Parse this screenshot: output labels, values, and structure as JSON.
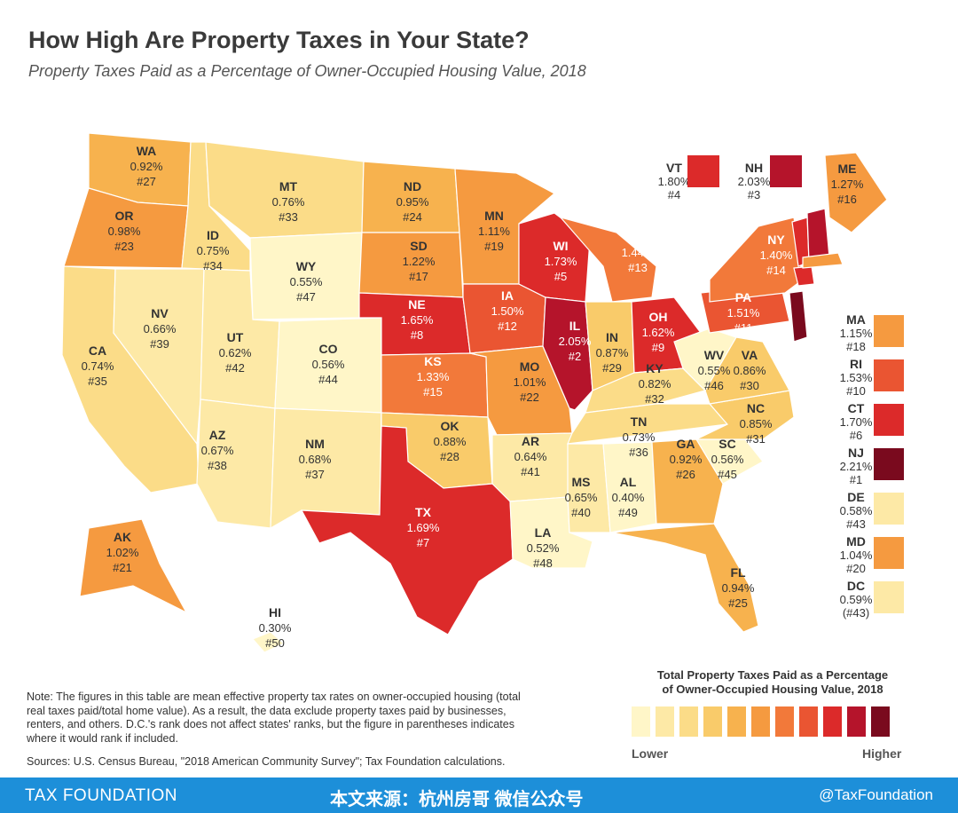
{
  "title": "How High Are Property Taxes in Your State?",
  "subtitle": "Property Taxes Paid as a Percentage of Owner-Occupied Housing Value, 2018",
  "colors": {
    "scale": [
      "#fff6c8",
      "#fde9a6",
      "#fbdc88",
      "#f9cb6a",
      "#f7b24e",
      "#f59a40",
      "#f2793a",
      "#ea5532",
      "#dc2a2a",
      "#b5142b",
      "#7a0a1e"
    ],
    "footer": "#1d8fd9"
  },
  "states": {
    "WA": {
      "code": "WA",
      "rate": "0.92%",
      "rank": "#27",
      "color": "#f7b24e"
    },
    "OR": {
      "code": "OR",
      "rate": "0.98%",
      "rank": "#23",
      "color": "#f59a40"
    },
    "CA": {
      "code": "CA",
      "rate": "0.74%",
      "rank": "#35",
      "color": "#fbdc88"
    },
    "NV": {
      "code": "NV",
      "rate": "0.66%",
      "rank": "#39",
      "color": "#fde9a6"
    },
    "ID": {
      "code": "ID",
      "rate": "0.75%",
      "rank": "#34",
      "color": "#fbdc88"
    },
    "MT": {
      "code": "MT",
      "rate": "0.76%",
      "rank": "#33",
      "color": "#fbdc88"
    },
    "WY": {
      "code": "WY",
      "rate": "0.55%",
      "rank": "#47",
      "color": "#fff6c8"
    },
    "UT": {
      "code": "UT",
      "rate": "0.62%",
      "rank": "#42",
      "color": "#fde9a6"
    },
    "AZ": {
      "code": "AZ",
      "rate": "0.67%",
      "rank": "#38",
      "color": "#fde9a6"
    },
    "CO": {
      "code": "CO",
      "rate": "0.56%",
      "rank": "#44",
      "color": "#fff6c8"
    },
    "NM": {
      "code": "NM",
      "rate": "0.68%",
      "rank": "#37",
      "color": "#fde9a6"
    },
    "ND": {
      "code": "ND",
      "rate": "0.95%",
      "rank": "#24",
      "color": "#f7b24e"
    },
    "SD": {
      "code": "SD",
      "rate": "1.22%",
      "rank": "#17",
      "color": "#f59a40"
    },
    "NE": {
      "code": "NE",
      "rate": "1.65%",
      "rank": "#8",
      "color": "#dc2a2a"
    },
    "KS": {
      "code": "KS",
      "rate": "1.33%",
      "rank": "#15",
      "color": "#f2793a"
    },
    "OK": {
      "code": "OK",
      "rate": "0.88%",
      "rank": "#28",
      "color": "#f9cb6a"
    },
    "TX": {
      "code": "TX",
      "rate": "1.69%",
      "rank": "#7",
      "color": "#dc2a2a"
    },
    "MN": {
      "code": "MN",
      "rate": "1.11%",
      "rank": "#19",
      "color": "#f59a40"
    },
    "IA": {
      "code": "IA",
      "rate": "1.50%",
      "rank": "#12",
      "color": "#ea5532"
    },
    "MO": {
      "code": "MO",
      "rate": "1.01%",
      "rank": "#22",
      "color": "#f59a40"
    },
    "AR": {
      "code": "AR",
      "rate": "0.64%",
      "rank": "#41",
      "color": "#fde9a6"
    },
    "LA": {
      "code": "LA",
      "rate": "0.52%",
      "rank": "#48",
      "color": "#fff6c8"
    },
    "WI": {
      "code": "WI",
      "rate": "1.73%",
      "rank": "#5",
      "color": "#dc2a2a"
    },
    "IL": {
      "code": "IL",
      "rate": "2.05%",
      "rank": "#2",
      "color": "#b5142b"
    },
    "MI": {
      "code": "MI",
      "rate": "1.44%",
      "rank": "#13",
      "color": "#f2793a"
    },
    "IN": {
      "code": "IN",
      "rate": "0.87%",
      "rank": "#29",
      "color": "#f9cb6a"
    },
    "OH": {
      "code": "OH",
      "rate": "1.62%",
      "rank": "#9",
      "color": "#dc2a2a"
    },
    "KY": {
      "code": "KY",
      "rate": "0.82%",
      "rank": "#32",
      "color": "#fbdc88"
    },
    "TN": {
      "code": "TN",
      "rate": "0.73%",
      "rank": "#36",
      "color": "#fbdc88"
    },
    "MS": {
      "code": "MS",
      "rate": "0.65%",
      "rank": "#40",
      "color": "#fde9a6"
    },
    "AL": {
      "code": "AL",
      "rate": "0.40%",
      "rank": "#49",
      "color": "#fff6c8"
    },
    "GA": {
      "code": "GA",
      "rate": "0.92%",
      "rank": "#26",
      "color": "#f7b24e"
    },
    "FL": {
      "code": "FL",
      "rate": "0.94%",
      "rank": "#25",
      "color": "#f7b24e"
    },
    "SC": {
      "code": "SC",
      "rate": "0.56%",
      "rank": "#45",
      "color": "#fff6c8"
    },
    "NC": {
      "code": "NC",
      "rate": "0.85%",
      "rank": "#31",
      "color": "#f9cb6a"
    },
    "VA": {
      "code": "VA",
      "rate": "0.86%",
      "rank": "#30",
      "color": "#f9cb6a"
    },
    "WV": {
      "code": "WV",
      "rate": "0.55%",
      "rank": "#46",
      "color": "#fff6c8"
    },
    "PA": {
      "code": "PA",
      "rate": "1.51%",
      "rank": "#11",
      "color": "#ea5532"
    },
    "NY": {
      "code": "NY",
      "rate": "1.40%",
      "rank": "#14",
      "color": "#f2793a"
    },
    "ME": {
      "code": "ME",
      "rate": "1.27%",
      "rank": "#16",
      "color": "#f59a40"
    },
    "AK": {
      "code": "AK",
      "rate": "1.02%",
      "rank": "#21",
      "color": "#f59a40"
    },
    "HI": {
      "code": "HI",
      "rate": "0.30%",
      "rank": "#50",
      "color": "#fff6c8"
    }
  },
  "callouts": {
    "VT": {
      "code": "VT",
      "rate": "1.80%",
      "rank": "#4",
      "color": "#dc2a2a"
    },
    "NH": {
      "code": "NH",
      "rate": "2.03%",
      "rank": "#3",
      "color": "#b5142b"
    },
    "MA": {
      "code": "MA",
      "rate": "1.15%",
      "rank": "#18",
      "color": "#f59a40"
    },
    "RI": {
      "code": "RI",
      "rate": "1.53%",
      "rank": "#10",
      "color": "#ea5532"
    },
    "CT": {
      "code": "CT",
      "rate": "1.70%",
      "rank": "#6",
      "color": "#dc2a2a"
    },
    "NJ": {
      "code": "NJ",
      "rate": "2.21%",
      "rank": "#1",
      "color": "#7a0a1e"
    },
    "DE": {
      "code": "DE",
      "rate": "0.58%",
      "rank": "#43",
      "color": "#fde9a6"
    },
    "MD": {
      "code": "MD",
      "rate": "1.04%",
      "rank": "#20",
      "color": "#f59a40"
    },
    "DC": {
      "code": "DC",
      "rate": "0.59%",
      "rank": "(#43)",
      "color": "#fde9a6"
    }
  },
  "legend": {
    "title_line1": "Total Property Taxes Paid as a Percentage",
    "title_line2": "of Owner-Occupied Housing Value, 2018",
    "lower": "Lower",
    "higher": "Higher"
  },
  "note": "Note: The figures in this table are mean effective property tax rates on owner-occupied housing (total real taxes paid/total home value). As a result, the data exclude property taxes paid by businesses, renters, and others. D.C.'s rank does not affect states' ranks, but the figure in parentheses indicates where it would rank if included.",
  "sources": "Sources: U.S. Census Bureau, \"2018 American Community Survey\"; Tax Foundation calculations.",
  "footer": {
    "brand": "TAX FOUNDATION",
    "cn_text": "本文来源：杭州房哥 微信公众号",
    "handle": "@TaxFoundation"
  }
}
